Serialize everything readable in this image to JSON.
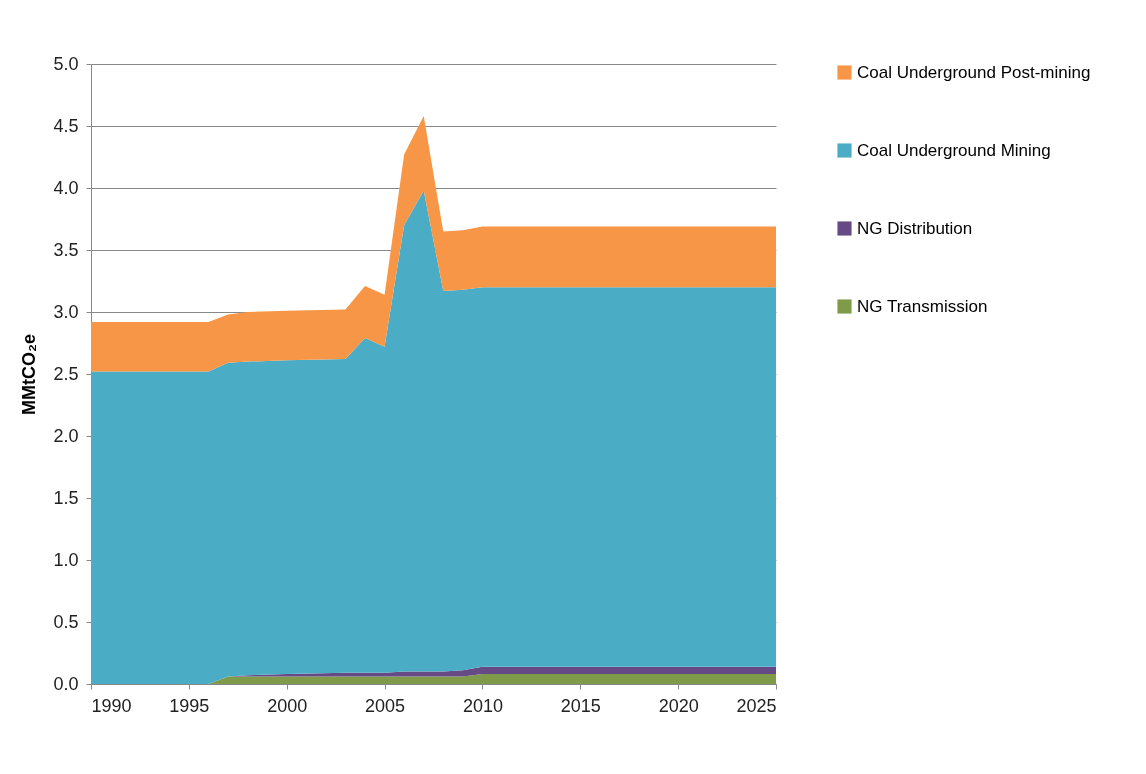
{
  "chart_data": {
    "type": "area",
    "stacked": true,
    "ylabel": "MMtCO₂e",
    "x": [
      1990,
      1996,
      1997,
      1998,
      2000,
      2003,
      2004,
      2005,
      2006,
      2007,
      2008,
      2009,
      2010,
      2025
    ],
    "series": [
      {
        "name": "NG Transmission",
        "color": "#7f9a48",
        "values": [
          0,
          0,
          0.06,
          0.06,
          0.06,
          0.06,
          0.06,
          0.06,
          0.06,
          0.06,
          0.06,
          0.06,
          0.08,
          0.08
        ]
      },
      {
        "name": "NG Distribution",
        "color": "#664a86",
        "values": [
          0,
          0,
          0,
          0.01,
          0.02,
          0.03,
          0.03,
          0.03,
          0.04,
          0.04,
          0.04,
          0.05,
          0.06,
          0.06
        ]
      },
      {
        "name": "Coal Underground Mining",
        "color": "#4bacc6",
        "values": [
          2.52,
          2.52,
          2.53,
          2.53,
          2.53,
          2.53,
          2.7,
          2.63,
          3.6,
          3.88,
          3.07,
          3.07,
          3.06,
          3.06
        ]
      },
      {
        "name": "Coal Underground Post-mining",
        "color": "#f79646",
        "values": [
          0.4,
          0.4,
          0.39,
          0.4,
          0.4,
          0.4,
          0.42,
          0.42,
          0.57,
          0.6,
          0.48,
          0.48,
          0.49,
          0.49
        ]
      }
    ],
    "xlim": [
      1990,
      2025
    ],
    "xticks": [
      1990,
      1995,
      2000,
      2005,
      2010,
      2015,
      2020,
      2025
    ],
    "ylim": [
      0,
      5.0
    ],
    "yticks": [
      {
        "value": 0,
        "label": "0.0"
      },
      {
        "value": 0.5,
        "label": "0.5"
      },
      {
        "value": 1,
        "label": "1.0"
      },
      {
        "value": 1.5,
        "label": "1.5"
      },
      {
        "value": 2,
        "label": "2.0"
      },
      {
        "value": 2.5,
        "label": "2.5"
      },
      {
        "value": 3,
        "label": "3.0"
      },
      {
        "value": 3.5,
        "label": "3.5"
      },
      {
        "value": 4,
        "label": "4.0"
      },
      {
        "value": 4.5,
        "label": "4.5"
      },
      {
        "value": 5,
        "label": "5.0"
      }
    ],
    "grid": "y",
    "legend": "right"
  }
}
